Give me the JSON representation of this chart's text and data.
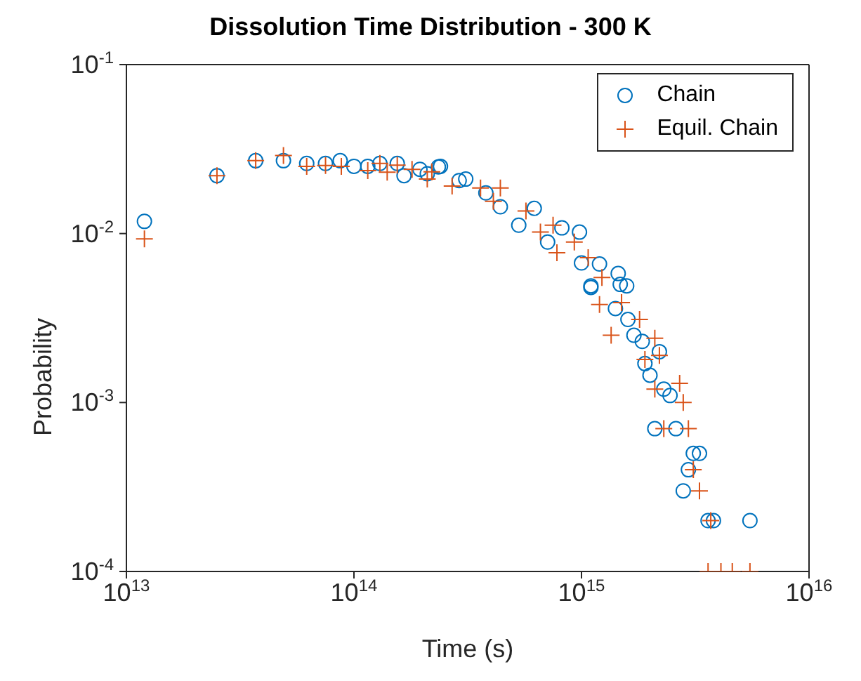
{
  "chart_data": {
    "type": "scatter",
    "title": "Dissolution Time Distribution - 300 K",
    "xlabel": "Time (s)",
    "ylabel": "Probability",
    "log": "xy",
    "legend": "top right",
    "xlim": [
      10000000000000.0,
      1e+16
    ],
    "xticks": [
      {
        "value": 10000000000000.0,
        "label": "10$^{13}$"
      },
      {
        "value": 100000000000000.0,
        "label": "10$^{14}$"
      },
      {
        "value": 1000000000000000.0,
        "label": "10$^{15}$"
      },
      {
        "value": 1e+16,
        "label": "10$^{16}$"
      }
    ],
    "ylim": [
      0.0001,
      0.1
    ],
    "yticks": [
      {
        "value": 0.0001,
        "label": "10$^{-4}$"
      },
      {
        "value": 0.001,
        "label": "10$^{-3}$"
      },
      {
        "value": 0.01,
        "label": "10$^{-2}$"
      },
      {
        "value": 0.1,
        "label": "10$^{-1}$"
      }
    ],
    "series": [
      {
        "name": "Chain",
        "color": "#0072bd",
        "marker": "circle",
        "x": [
          12000000000000.0,
          25000000000000.0,
          37000000000000.0,
          49000000000000.0,
          62000000000000.0,
          75000000000000.0,
          87000000000000.0,
          100000000000000.0,
          115000000000000.0,
          130000000000000.0,
          155000000000000.0,
          166000000000000.0,
          195000000000000.0,
          210000000000000.0,
          235000000000000.0,
          240000000000000.0,
          290000000000000.0,
          310000000000000.0,
          380000000000000.0,
          440000000000000.0,
          530000000000000.0,
          620000000000000.0,
          710000000000000.0,
          820000000000000.0,
          980000000000000.0,
          1000000000000000.0,
          1100000000000000.0,
          1100000000000000.0,
          1200000000000000.0,
          1410000000000000.0,
          1450000000000000.0,
          1480000000000000.0,
          1580000000000000.0,
          1600000000000000.0,
          1700000000000000.0,
          1850000000000000.0,
          1900000000000000.0,
          2000000000000000.0,
          2100000000000000.0,
          2200000000000000.0,
          2300000000000000.0,
          2450000000000000.0,
          2600000000000000.0,
          2800000000000000.0,
          2950000000000000.0,
          3100000000000000.0,
          3300000000000000.0,
          3600000000000000.0,
          3800000000000000.0,
          5500000000000000.0
        ],
        "values": [
          0.0118,
          0.022,
          0.027,
          0.027,
          0.026,
          0.026,
          0.027,
          0.025,
          0.025,
          0.026,
          0.026,
          0.022,
          0.024,
          0.0226,
          0.0248,
          0.025,
          0.0206,
          0.021,
          0.0174,
          0.0144,
          0.0112,
          0.0141,
          0.0089,
          0.0108,
          0.0102,
          0.0067,
          0.0048,
          0.0049,
          0.0066,
          0.0036,
          0.0058,
          0.005,
          0.0049,
          0.0031,
          0.0025,
          0.0023,
          0.0017,
          0.00145,
          0.0007,
          0.002,
          0.0012,
          0.0011,
          0.0007,
          0.0003,
          0.0004,
          0.0005,
          0.0005,
          0.0002,
          0.0002,
          0.0002
        ]
      },
      {
        "name": "Equil. Chain",
        "color": "#d95319",
        "marker": "cross",
        "x": [
          12000000000000.0,
          25000000000000.0,
          37000000000000.0,
          49000000000000.0,
          62000000000000.0,
          75000000000000.0,
          88000000000000.0,
          115000000000000.0,
          130000000000000.0,
          140000000000000.0,
          155000000000000.0,
          180000000000000.0,
          210000000000000.0,
          220000000000000.0,
          270000000000000.0,
          360000000000000.0,
          410000000000000.0,
          440000000000000.0,
          570000000000000.0,
          660000000000000.0,
          750000000000000.0,
          780000000000000.0,
          930000000000000.0,
          1070000000000000.0,
          1200000000000000.0,
          1230000000000000.0,
          1350000000000000.0,
          1500000000000000.0,
          1800000000000000.0,
          1900000000000000.0,
          2100000000000000.0,
          2100000000000000.0,
          2200000000000000.0,
          2300000000000000.0,
          2700000000000000.0,
          2800000000000000.0,
          2950000000000000.0,
          3100000000000000.0,
          3300000000000000.0,
          3600000000000000.0,
          3700000000000000.0,
          4100000000000000.0,
          4600000000000000.0,
          5500000000000000.0
        ],
        "values": [
          0.0093,
          0.022,
          0.027,
          0.029,
          0.025,
          0.0253,
          0.025,
          0.0236,
          0.026,
          0.0231,
          0.0254,
          0.024,
          0.021,
          0.0232,
          0.0191,
          0.0186,
          0.0155,
          0.0186,
          0.0136,
          0.0102,
          0.0112,
          0.0077,
          0.0089,
          0.0072,
          0.0038,
          0.0055,
          0.0025,
          0.0039,
          0.0031,
          0.0018,
          0.0024,
          0.0012,
          0.0019,
          0.0007,
          0.0013,
          0.001,
          0.0007,
          0.0004,
          0.0003,
          0.0001,
          0.0002,
          0.0001,
          0.0001,
          0.0001
        ]
      }
    ]
  }
}
